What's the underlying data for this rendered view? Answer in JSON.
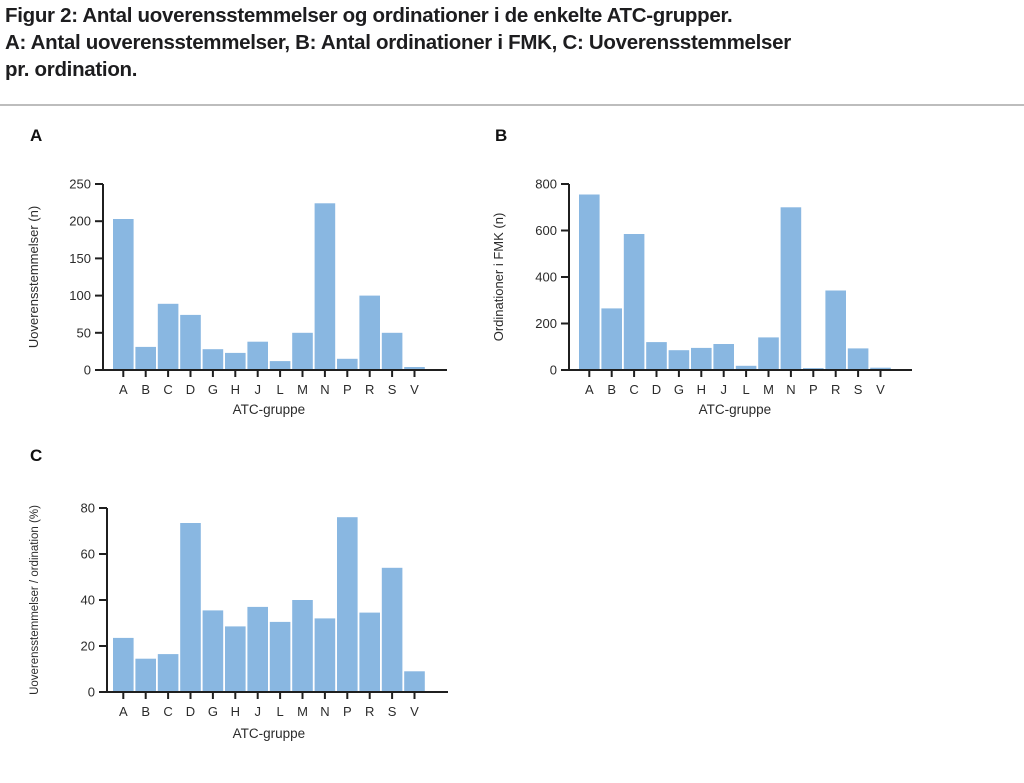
{
  "title": {
    "line1": "Figur 2: Antal uoverensstemmelser og ordinationer i de enkelte ATC-grupper.",
    "line2": "A: Antal uoverensstemmelser, B: Antal ordinationer i FMK, C: Uoverensstemmelser",
    "line3": "pr. ordination."
  },
  "colors": {
    "bar": "#89B7E1",
    "axis": "#1f1f1f",
    "tick_label": "#2b2b2b",
    "axis_title": "#2b2b2b",
    "panel_label": "#111111",
    "divider": "#bdbdbd",
    "title_text": "#1d1d1f",
    "background": "#ffffff"
  },
  "chart_data": [
    {
      "type": "bar",
      "panel_label": "A",
      "title": "Antal uoverensstemmelser",
      "xlabel": "ATC-gruppe",
      "ylabel": "Uoverensstemmelser (n)",
      "categories": [
        "A",
        "B",
        "C",
        "D",
        "G",
        "H",
        "J",
        "L",
        "M",
        "N",
        "P",
        "R",
        "S",
        "V"
      ],
      "values": [
        203,
        31,
        89,
        74,
        28,
        23,
        38,
        12,
        50,
        224,
        15,
        100,
        50,
        4
      ],
      "ylim": [
        0,
        250
      ],
      "yticks": [
        0,
        50,
        100,
        150,
        200,
        250
      ],
      "grid": false,
      "legend": "none"
    },
    {
      "type": "bar",
      "panel_label": "B",
      "title": "Antal ordinationer i FMK",
      "xlabel": "ATC-gruppe",
      "ylabel": "Ordinationer i FMK (n)",
      "categories": [
        "A",
        "B",
        "C",
        "D",
        "G",
        "H",
        "J",
        "L",
        "M",
        "N",
        "P",
        "R",
        "S",
        "V"
      ],
      "values": [
        755,
        265,
        585,
        120,
        85,
        95,
        112,
        18,
        140,
        700,
        8,
        342,
        93,
        10
      ],
      "ylim": [
        0,
        800
      ],
      "yticks": [
        0,
        200,
        400,
        600,
        800
      ],
      "grid": false,
      "legend": "none"
    },
    {
      "type": "bar",
      "panel_label": "C",
      "title": "Uoverensstemmelser pr. ordination",
      "xlabel": "ATC-gruppe",
      "ylabel": "Uoverensstemmelser / ordination (%)",
      "categories": [
        "A",
        "B",
        "C",
        "D",
        "G",
        "H",
        "J",
        "L",
        "M",
        "N",
        "P",
        "R",
        "S",
        "V"
      ],
      "values": [
        23.5,
        14.5,
        16.5,
        73.5,
        35.5,
        28.5,
        37,
        30.5,
        40,
        32,
        76,
        34.5,
        54,
        9
      ],
      "ylim": [
        0,
        80
      ],
      "yticks": [
        0,
        20,
        40,
        60,
        80
      ],
      "grid": false,
      "legend": "none"
    }
  ]
}
